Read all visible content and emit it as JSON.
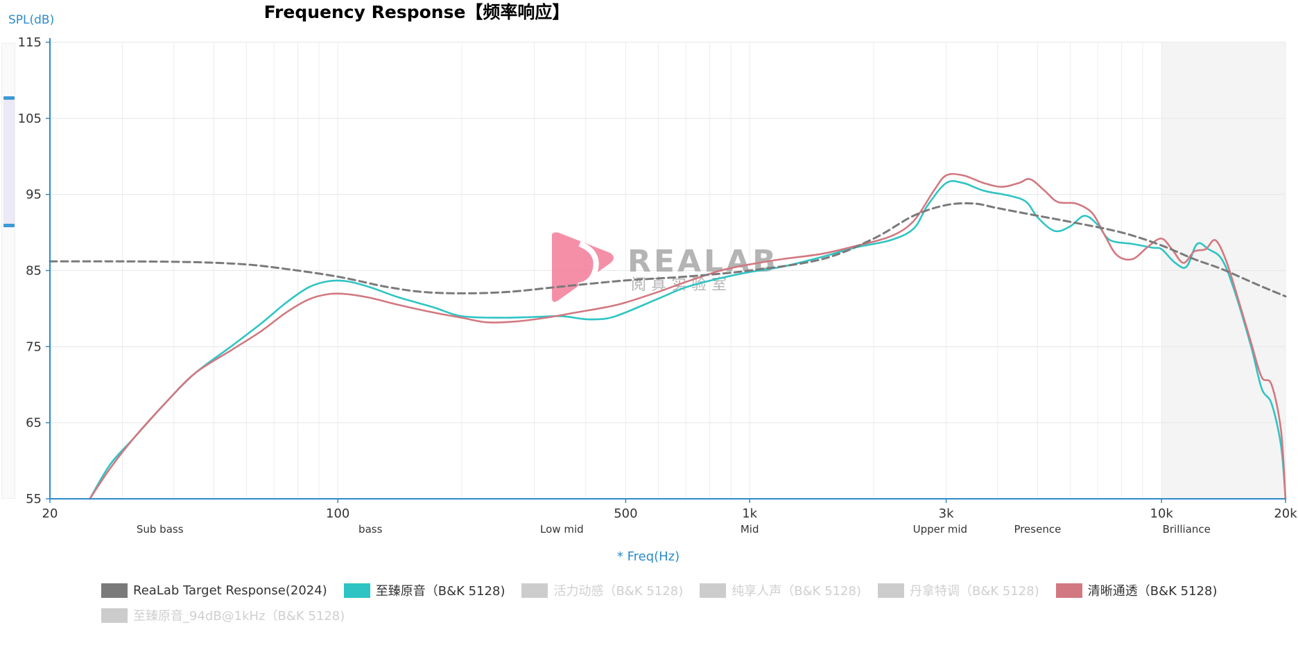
{
  "chart_data": {
    "type": "line",
    "title": "Frequency Response【频率响应】",
    "ylabel": "SPL(dB)",
    "xlabel": "* Freq(Hz)",
    "x_scale": "log",
    "xlim": [
      20,
      20000
    ],
    "ylim": [
      55,
      115
    ],
    "y_ticks": [
      "115",
      "105",
      "95",
      "85",
      "75",
      "65",
      "55"
    ],
    "x_ticks": [
      {
        "value": 20,
        "label": "20"
      },
      {
        "value": 100,
        "label": "100"
      },
      {
        "value": 500,
        "label": "500"
      },
      {
        "value": 1000,
        "label": "1k"
      },
      {
        "value": 3000,
        "label": "3k"
      },
      {
        "value": 10000,
        "label": "10k"
      },
      {
        "value": 20000,
        "label": "20k"
      }
    ],
    "bands": [
      {
        "label": "Sub bass",
        "center": 37
      },
      {
        "label": "bass",
        "center": 120
      },
      {
        "label": "Low mid",
        "center": 350
      },
      {
        "label": "Mid",
        "center": 1000
      },
      {
        "label": "Upper mid",
        "center": 2900
      },
      {
        "label": "Presence",
        "center": 5000
      },
      {
        "label": "Brilliance",
        "center": 11500
      }
    ],
    "shaded_range": [
      10000,
      20000
    ],
    "grid": true,
    "watermark": {
      "brand": "REALAB",
      "sub": "阅 真 实 验 室"
    },
    "series": [
      {
        "name": "ReaLab Target Response(2024)",
        "color": "#7a7a7a",
        "dashed": true,
        "visible": true,
        "points": [
          [
            20,
            86.2
          ],
          [
            30,
            86.2
          ],
          [
            45,
            86.1
          ],
          [
            60,
            85.8
          ],
          [
            75,
            85.2
          ],
          [
            100,
            84.2
          ],
          [
            130,
            82.9
          ],
          [
            160,
            82.2
          ],
          [
            200,
            82.0
          ],
          [
            260,
            82.2
          ],
          [
            350,
            82.9
          ],
          [
            500,
            83.7
          ],
          [
            700,
            84.2
          ],
          [
            1000,
            85.0
          ],
          [
            1500,
            86.5
          ],
          [
            2000,
            89.2
          ],
          [
            2500,
            92.2
          ],
          [
            3000,
            93.6
          ],
          [
            3500,
            93.8
          ],
          [
            4000,
            93.2
          ],
          [
            5000,
            92.2
          ],
          [
            6000,
            91.4
          ],
          [
            8000,
            90.0
          ],
          [
            10000,
            88.3
          ],
          [
            12000,
            86.5
          ],
          [
            14000,
            85.2
          ],
          [
            17000,
            83.2
          ],
          [
            20000,
            81.6
          ]
        ]
      },
      {
        "name": "至臻原音（B&K 5128)",
        "color": "#2ec4c4",
        "dashed": false,
        "visible": true,
        "points": [
          [
            25,
            55.0
          ],
          [
            28,
            59.5
          ],
          [
            32,
            63.0
          ],
          [
            38,
            67.5
          ],
          [
            45,
            71.5
          ],
          [
            55,
            75.0
          ],
          [
            65,
            78.0
          ],
          [
            75,
            80.8
          ],
          [
            85,
            82.8
          ],
          [
            95,
            83.6
          ],
          [
            105,
            83.6
          ],
          [
            120,
            82.8
          ],
          [
            140,
            81.5
          ],
          [
            170,
            80.2
          ],
          [
            200,
            79.0
          ],
          [
            250,
            78.8
          ],
          [
            300,
            78.9
          ],
          [
            350,
            79.0
          ],
          [
            400,
            78.6
          ],
          [
            450,
            78.7
          ],
          [
            500,
            79.5
          ],
          [
            600,
            81.3
          ],
          [
            700,
            82.8
          ],
          [
            850,
            84.0
          ],
          [
            1000,
            84.8
          ],
          [
            1200,
            85.5
          ],
          [
            1500,
            86.8
          ],
          [
            1800,
            88.0
          ],
          [
            2200,
            89.0
          ],
          [
            2500,
            90.5
          ],
          [
            2700,
            93.5
          ],
          [
            3000,
            96.5
          ],
          [
            3300,
            96.5
          ],
          [
            3700,
            95.5
          ],
          [
            4300,
            94.8
          ],
          [
            4700,
            94.0
          ],
          [
            5000,
            92.0
          ],
          [
            5500,
            90.2
          ],
          [
            6000,
            90.8
          ],
          [
            6500,
            92.2
          ],
          [
            7000,
            91.0
          ],
          [
            7500,
            89.0
          ],
          [
            8500,
            88.5
          ],
          [
            9500,
            88.0
          ],
          [
            10000,
            87.8
          ],
          [
            10800,
            86.0
          ],
          [
            11500,
            85.5
          ],
          [
            12200,
            88.5
          ],
          [
            13000,
            87.8
          ],
          [
            14000,
            86.5
          ],
          [
            15000,
            82.5
          ],
          [
            16500,
            75.0
          ],
          [
            17500,
            69.5
          ],
          [
            18500,
            67.5
          ],
          [
            19500,
            62.0
          ],
          [
            20000,
            55.0
          ]
        ]
      },
      {
        "name": "活力动感（B&K 5128)",
        "color": "#cccccc",
        "dashed": false,
        "visible": false,
        "points": []
      },
      {
        "name": "纯享人声（B&K 5128)",
        "color": "#cccccc",
        "dashed": false,
        "visible": false,
        "points": []
      },
      {
        "name": "丹拿特调（B&K 5128)",
        "color": "#cccccc",
        "dashed": false,
        "visible": false,
        "points": []
      },
      {
        "name": "清晰通透（B&K 5128)",
        "color": "#d27880",
        "dashed": false,
        "visible": true,
        "points": [
          [
            25,
            55.0
          ],
          [
            28,
            59.0
          ],
          [
            32,
            63.0
          ],
          [
            38,
            67.5
          ],
          [
            45,
            71.5
          ],
          [
            55,
            74.5
          ],
          [
            65,
            77.0
          ],
          [
            75,
            79.5
          ],
          [
            85,
            81.2
          ],
          [
            95,
            81.9
          ],
          [
            105,
            81.9
          ],
          [
            120,
            81.4
          ],
          [
            140,
            80.5
          ],
          [
            170,
            79.5
          ],
          [
            200,
            78.8
          ],
          [
            230,
            78.2
          ],
          [
            270,
            78.3
          ],
          [
            320,
            78.8
          ],
          [
            380,
            79.5
          ],
          [
            450,
            80.2
          ],
          [
            500,
            80.8
          ],
          [
            600,
            82.2
          ],
          [
            700,
            83.5
          ],
          [
            850,
            85.0
          ],
          [
            1000,
            85.8
          ],
          [
            1200,
            86.5
          ],
          [
            1500,
            87.2
          ],
          [
            1800,
            88.2
          ],
          [
            2200,
            89.5
          ],
          [
            2500,
            91.5
          ],
          [
            2800,
            95.5
          ],
          [
            3000,
            97.5
          ],
          [
            3300,
            97.5
          ],
          [
            3700,
            96.5
          ],
          [
            4100,
            96.0
          ],
          [
            4500,
            96.5
          ],
          [
            4800,
            97.0
          ],
          [
            5200,
            95.5
          ],
          [
            5600,
            94.0
          ],
          [
            6200,
            93.8
          ],
          [
            6800,
            92.5
          ],
          [
            7300,
            89.5
          ],
          [
            7800,
            87.0
          ],
          [
            8500,
            86.5
          ],
          [
            9300,
            88.2
          ],
          [
            10000,
            89.2
          ],
          [
            10600,
            87.8
          ],
          [
            11300,
            86.0
          ],
          [
            12000,
            87.5
          ],
          [
            12800,
            87.8
          ],
          [
            13500,
            89.0
          ],
          [
            14300,
            86.5
          ],
          [
            15200,
            82.0
          ],
          [
            16500,
            75.5
          ],
          [
            17500,
            71.0
          ],
          [
            18500,
            70.0
          ],
          [
            19500,
            64.0
          ],
          [
            20000,
            55.0
          ]
        ]
      },
      {
        "name": "至臻原音_94dB@1kHz（B&K 5128)",
        "color": "#cccccc",
        "dashed": false,
        "visible": false,
        "points": []
      }
    ]
  }
}
